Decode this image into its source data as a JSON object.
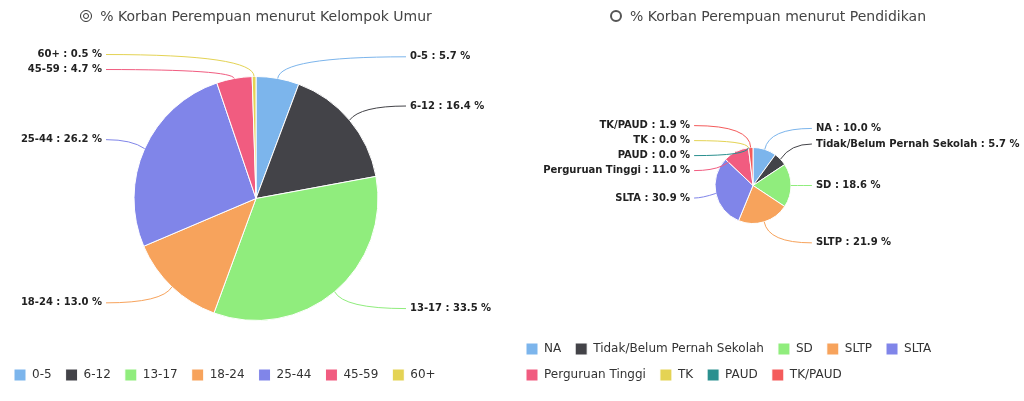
{
  "chart_data": [
    {
      "type": "pie",
      "title": "% Korban Perempuan menurut Kelompok Umur",
      "categories": [
        "0-5",
        "6-12",
        "13-17",
        "18-24",
        "25-44",
        "45-59",
        "60+"
      ],
      "values": [
        5.7,
        16.4,
        33.5,
        13.0,
        26.2,
        4.7,
        0.5
      ],
      "colors": [
        "#7cb5ec",
        "#434348",
        "#90ed7d",
        "#f7a35c",
        "#8085e9",
        "#f15c80",
        "#e4d354"
      ],
      "value_labels": [
        "0-5 : 5.7 %",
        "6-12 : 16.4 %",
        "13-17 : 33.5 %",
        "18-24 : 13.0 %",
        "25-44 : 26.2 %",
        "45-59 : 4.7 %",
        "60+ : 0.5 %"
      ],
      "legend": "bottom"
    },
    {
      "type": "pie",
      "title": "% Korban Perempuan menurut Pendidikan",
      "categories": [
        "NA",
        "Tidak/Belum Pernah Sekolah",
        "SD",
        "SLTP",
        "SLTA",
        "Perguruan Tinggi",
        "TK",
        "PAUD",
        "TK/PAUD"
      ],
      "values": [
        10.0,
        5.7,
        18.6,
        21.9,
        30.9,
        11.0,
        0.0,
        0.0,
        1.9
      ],
      "colors": [
        "#7cb5ec",
        "#434348",
        "#90ed7d",
        "#f7a35c",
        "#8085e9",
        "#f15c80",
        "#e4d354",
        "#2b908f",
        "#f45b5b"
      ],
      "value_labels": [
        "NA : 10.0 %",
        "Tidak/Belum Pernah Sekolah : 5.7 %",
        "SD : 18.6 %",
        "SLTP : 21.9 %",
        "SLTA : 30.9 %",
        "Perguruan Tinggi : 11.0 %",
        "TK : 0.0 %",
        "PAUD : 0.0 %",
        "TK/PAUD : 1.9 %"
      ],
      "legend": "bottom"
    }
  ]
}
